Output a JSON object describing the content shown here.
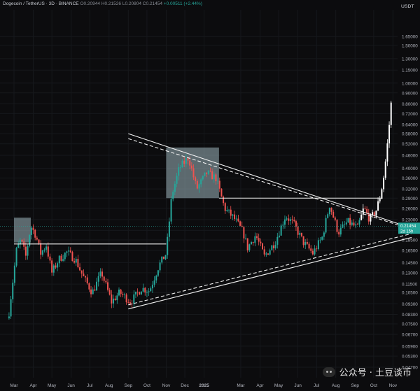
{
  "header": {
    "symbol": "Dogecoin / TetherUS · 3D · BINANCE",
    "open": "O0.20944",
    "high": "H0.21526",
    "low": "L0.20804",
    "close": "C0.21454",
    "change": "+0.00511 (+2.44%)"
  },
  "watermark": {
    "text": "公众号 · 土豆谈币"
  },
  "colors": {
    "up": "#26a69a",
    "down": "#ef5350",
    "background": "#0c0c0e",
    "grid": "#16181c",
    "label": "#26a69a"
  },
  "chart_data": {
    "type": "candlestick",
    "title": "Dogecoin / TetherUS · 3D · BINANCE",
    "y_axis_unit": "USDT",
    "y_scale": "log",
    "ylim": [
      0.042,
      2.2
    ],
    "xlim": [
      "2024-03",
      "2025-12"
    ],
    "y_ticks": [
      "1.65000",
      "1.50000",
      "1.30000",
      "1.15000",
      "1.00000",
      "0.90000",
      "0.80000",
      "0.72000",
      "0.64000",
      "0.58000",
      "0.52000",
      "0.46000",
      "0.40000",
      "0.36000",
      "0.32000",
      "0.29000",
      "0.26000",
      "0.23000",
      "0.20500",
      "0.18500",
      "0.16500",
      "0.14500",
      "0.13000",
      "0.11500",
      "0.10500",
      "0.09300",
      "0.08300",
      "0.07500",
      "0.06700",
      "0.05900",
      "0.05300",
      "0.04700"
    ],
    "x_ticks": [
      "Mar",
      "Apr",
      "May",
      "Jun",
      "Jul",
      "Aug",
      "Sep",
      "Oct",
      "Nov",
      "Dec",
      "2025",
      "Mar",
      "Apr",
      "May",
      "Jun",
      "Jul",
      "Aug",
      "Sep",
      "Oct",
      "Nov",
      "Dec"
    ],
    "x_tick_dates": [
      "2024-03",
      "2024-04",
      "2024-05",
      "2024-06",
      "2024-07",
      "2024-08",
      "2024-09",
      "2024-10",
      "2024-11",
      "2024-12",
      "2025-01",
      "2025-03",
      "2025-04",
      "2025-05",
      "2025-06",
      "2025-07",
      "2025-08",
      "2025-09",
      "2025-10",
      "2025-11",
      "2025-12"
    ],
    "price_label": {
      "value": "0.21454",
      "countdown": "2d 15h"
    },
    "price_path": [
      [
        "2024-02-22",
        0.085
      ],
      [
        "2024-03-05",
        0.165
      ],
      [
        "2024-03-12",
        0.185
      ],
      [
        "2024-03-20",
        0.155
      ],
      [
        "2024-03-28",
        0.215
      ],
      [
        "2024-04-05",
        0.195
      ],
      [
        "2024-04-13",
        0.16
      ],
      [
        "2024-04-22",
        0.175
      ],
      [
        "2024-05-01",
        0.13
      ],
      [
        "2024-05-12",
        0.15
      ],
      [
        "2024-05-25",
        0.162
      ],
      [
        "2024-06-08",
        0.15
      ],
      [
        "2024-06-20",
        0.125
      ],
      [
        "2024-07-05",
        0.105
      ],
      [
        "2024-07-20",
        0.13
      ],
      [
        "2024-08-05",
        0.095
      ],
      [
        "2024-08-18",
        0.105
      ],
      [
        "2024-09-05",
        0.095
      ],
      [
        "2024-09-22",
        0.11
      ],
      [
        "2024-10-05",
        0.107
      ],
      [
        "2024-10-20",
        0.14
      ],
      [
        "2024-11-01",
        0.16
      ],
      [
        "2024-11-10",
        0.3
      ],
      [
        "2024-11-22",
        0.4
      ],
      [
        "2024-12-07",
        0.45
      ],
      [
        "2024-12-20",
        0.32
      ],
      [
        "2025-01-05",
        0.38
      ],
      [
        "2025-01-20",
        0.36
      ],
      [
        "2025-02-03",
        0.26
      ],
      [
        "2025-02-20",
        0.23
      ],
      [
        "2025-03-05",
        0.2
      ],
      [
        "2025-03-12",
        0.17
      ],
      [
        "2025-03-25",
        0.195
      ],
      [
        "2025-04-08",
        0.155
      ],
      [
        "2025-04-25",
        0.18
      ],
      [
        "2025-05-12",
        0.24
      ],
      [
        "2025-05-25",
        0.22
      ],
      [
        "2025-06-10",
        0.18
      ],
      [
        "2025-06-25",
        0.16
      ],
      [
        "2025-07-10",
        0.19
      ],
      [
        "2025-07-22",
        0.27
      ],
      [
        "2025-08-05",
        0.2
      ],
      [
        "2025-08-20",
        0.225
      ],
      [
        "2025-09-05",
        0.21
      ],
      [
        "2025-09-15",
        0.26
      ],
      [
        "2025-09-25",
        0.23
      ],
      [
        "2025-10-05",
        0.255
      ],
      [
        "2025-10-12",
        0.3
      ],
      [
        "2025-10-18",
        0.38
      ],
      [
        "2025-10-24",
        0.55
      ],
      [
        "2025-10-29",
        0.8
      ]
    ],
    "overlays": [
      {
        "kind": "box",
        "from": [
          "2024-03-01",
          0.235
        ],
        "to": [
          "2024-03-28",
          0.18
        ]
      },
      {
        "kind": "box",
        "from": [
          "2024-11-01",
          0.5
        ],
        "to": [
          "2025-01-25",
          0.29
        ]
      },
      {
        "kind": "horizontal",
        "from": [
          "2024-03-01",
          0.177
        ],
        "to": [
          "2024-11-01",
          0.177
        ]
      },
      {
        "kind": "horizontal",
        "from": [
          "2025-01-25",
          0.29
        ],
        "to": [
          "2025-10-15",
          0.29
        ]
      },
      {
        "kind": "line",
        "style": "solid",
        "from": [
          "2024-09-01",
          0.58
        ],
        "to": [
          "2025-12-01",
          0.21
        ]
      },
      {
        "kind": "line",
        "style": "dashed",
        "from": [
          "2024-09-01",
          0.55
        ],
        "to": [
          "2025-11-25",
          0.21
        ]
      },
      {
        "kind": "line",
        "style": "solid",
        "from": [
          "2024-09-01",
          0.088
        ],
        "to": [
          "2025-12-01",
          0.19
        ]
      },
      {
        "kind": "line",
        "style": "dashed",
        "from": [
          "2024-09-01",
          0.092
        ],
        "to": [
          "2025-12-01",
          0.198
        ]
      }
    ]
  }
}
